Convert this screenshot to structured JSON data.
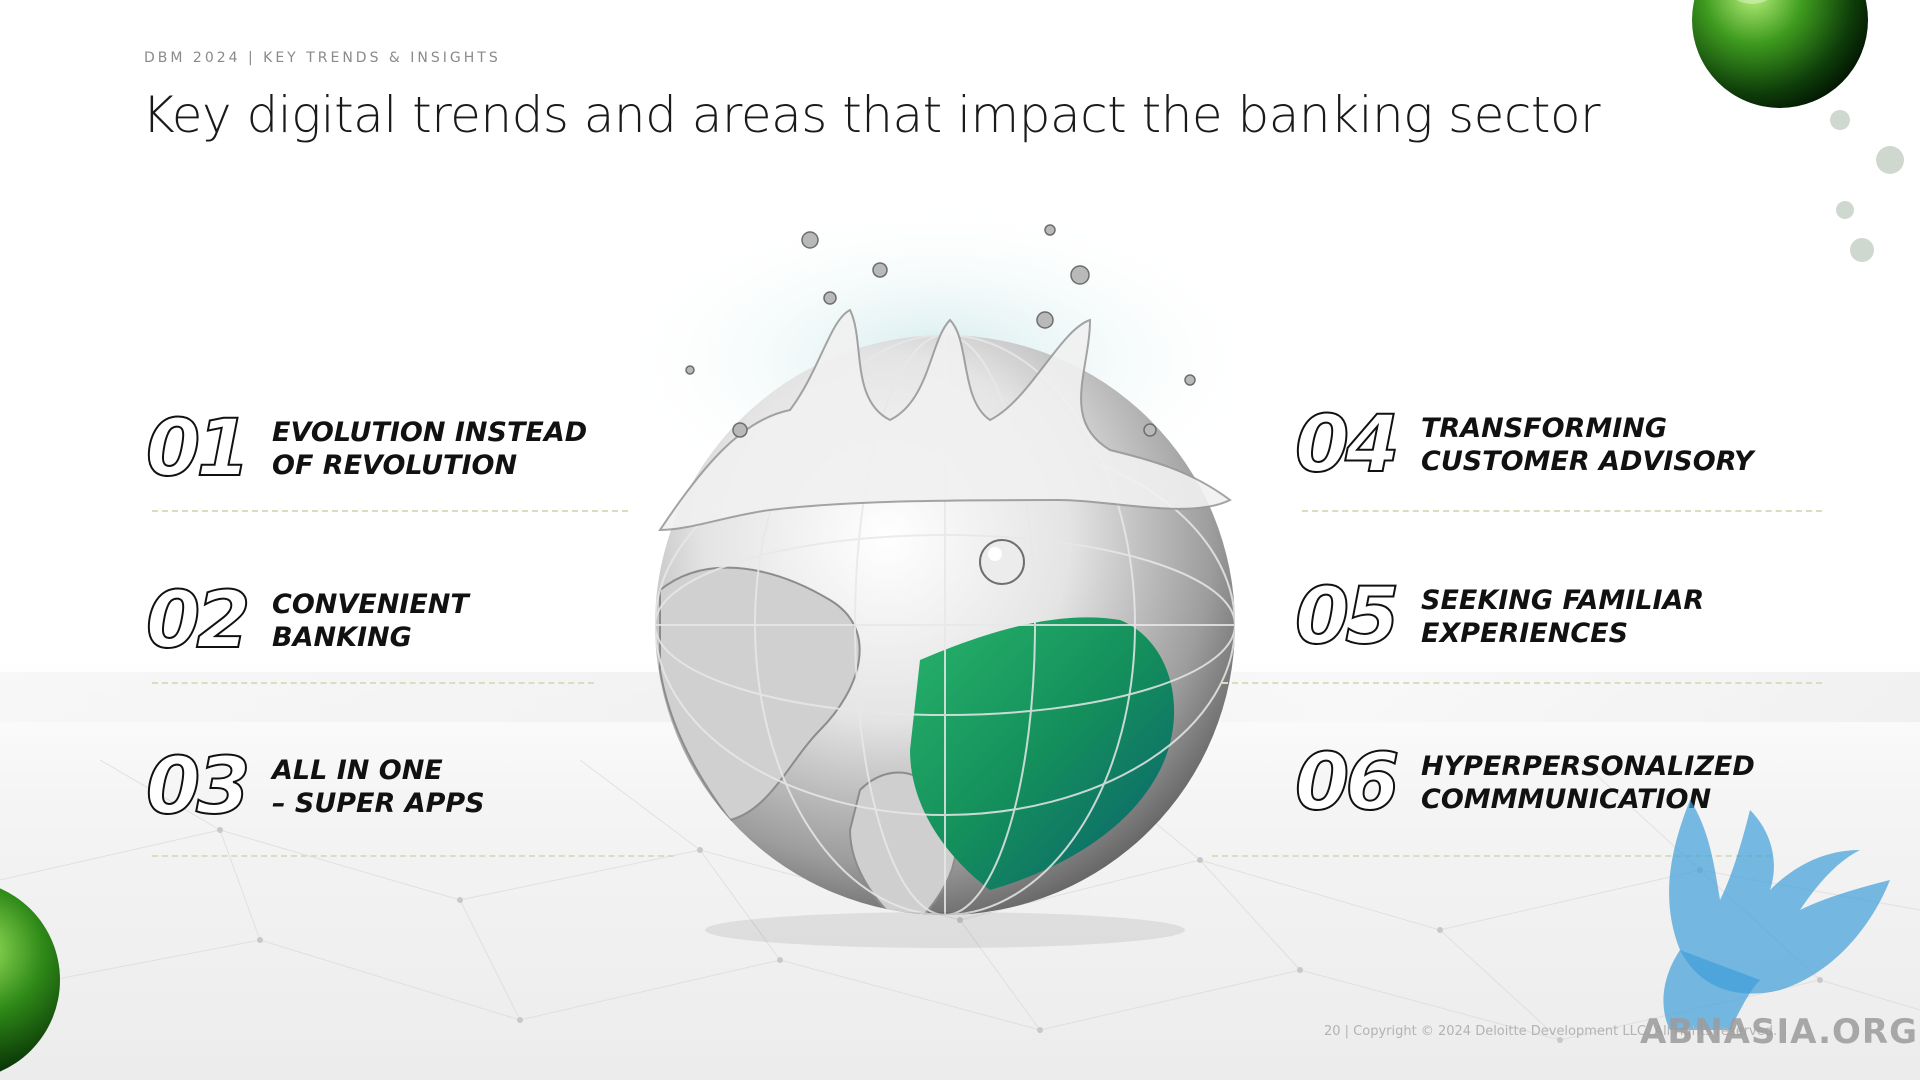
{
  "header": {
    "kicker": "DBM 2024 | KEY TRENDS & INSIGHTS",
    "title": "Key digital trends and areas that impact the banking sector"
  },
  "trends": [
    {
      "number": "01",
      "label": "EVOLUTION INSTEAD\nOF REVOLUTION"
    },
    {
      "number": "02",
      "label": "CONVENIENT\nBANKING"
    },
    {
      "number": "03",
      "label": "ALL IN ONE\n– SUPER APPS"
    },
    {
      "number": "04",
      "label": "TRANSFORMING\nCUSTOMER ADVISORY"
    },
    {
      "number": "05",
      "label": "SEEKING FAMILIAR\nEXPERIENCES"
    },
    {
      "number": "06",
      "label": "HYPERPERSONALIZED\nCOMMMUNICATION"
    }
  ],
  "footer": {
    "copyright": "20 | Copyright © 2024 Deloitte Development LLC. All rights reserved."
  },
  "watermark": {
    "text": "ABNASIA.ORG"
  },
  "colors": {
    "divider": "#d6dfbf",
    "accent_green": "#3aa53a",
    "globe_silver": "#c9c9c9"
  },
  "icons": {
    "globe": "water-splash-globe",
    "orbs": "green-sphere",
    "watermark": "griffin-logo"
  }
}
